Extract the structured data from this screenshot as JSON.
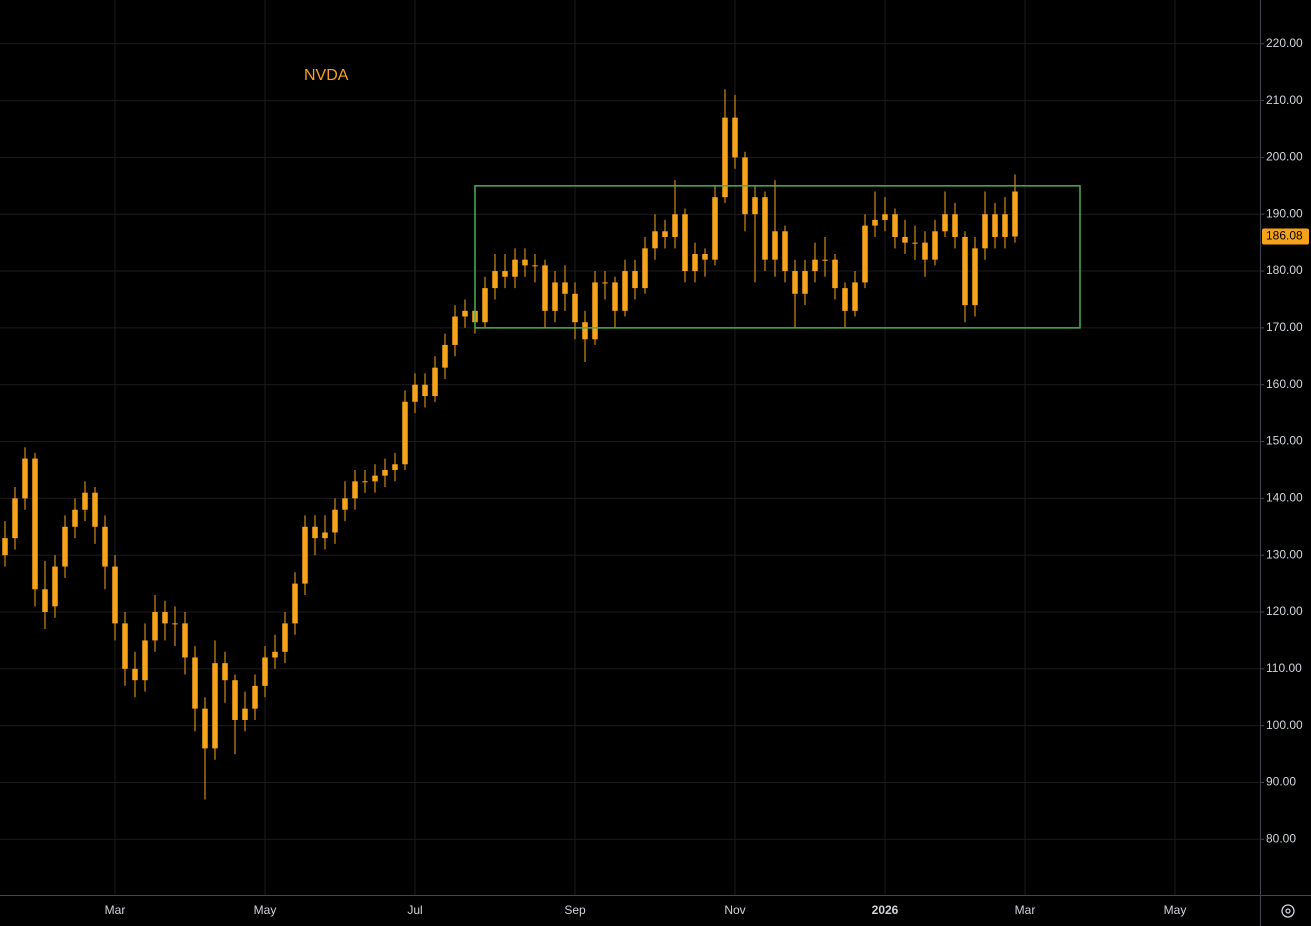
{
  "chart_data": {
    "type": "candlestick",
    "title": "NVDA",
    "color": "#f7a21b",
    "grid": true,
    "categories": [
      null,
      null,
      null,
      null,
      null,
      null,
      null,
      null,
      null,
      null,
      null,
      "Mar",
      null,
      null,
      null,
      null,
      null,
      null,
      null,
      null,
      null,
      null,
      null,
      null,
      null,
      null,
      "May",
      null,
      null,
      null,
      null,
      null,
      null,
      null,
      null,
      null,
      null,
      null,
      null,
      null,
      null,
      "Jul",
      null,
      null,
      null,
      null,
      null,
      null,
      null,
      null,
      null,
      null,
      null,
      null,
      null,
      null,
      null,
      "Sep",
      null,
      null,
      null,
      null,
      null,
      null,
      null,
      null,
      null,
      null,
      null,
      null,
      null,
      null,
      null,
      "Nov",
      null,
      null,
      null,
      null,
      null,
      null,
      null,
      null,
      null,
      null,
      null,
      null,
      null,
      null,
      "2026",
      null,
      null,
      null,
      null,
      null,
      null,
      null,
      null,
      null,
      null,
      null,
      null,
      null,
      "Mar",
      null,
      null,
      null,
      null,
      null,
      null,
      null,
      null,
      null,
      null,
      null,
      null,
      null,
      null,
      "May",
      null,
      null,
      null,
      null,
      null,
      null,
      null,
      null
    ],
    "open": [
      130,
      133,
      140,
      147,
      124,
      121,
      128,
      135,
      138,
      141,
      135,
      128,
      118,
      110,
      108,
      115,
      120,
      118,
      118,
      112,
      103,
      96,
      111,
      108,
      101,
      103,
      107,
      112,
      113,
      118,
      125,
      135,
      133,
      134,
      138,
      140,
      143,
      143,
      144,
      145,
      146,
      157,
      160,
      158,
      163,
      167,
      172,
      173,
      171,
      177,
      180,
      179,
      182,
      181,
      181,
      173,
      178,
      176,
      171,
      168,
      178,
      178,
      173,
      180,
      177,
      184,
      187,
      186,
      190,
      180,
      183,
      182,
      193,
      207,
      200,
      190,
      193,
      182,
      187,
      180,
      176,
      180,
      182,
      182,
      177,
      173,
      178,
      188,
      189,
      190,
      186,
      185,
      185,
      182,
      187,
      190,
      186,
      174,
      184,
      190,
      186,
      194,
      null,
      null,
      null,
      null,
      null,
      null,
      null,
      null,
      null,
      null,
      null,
      null,
      null,
      null,
      null,
      null,
      null,
      null,
      null,
      null,
      null,
      null,
      null,
      null
    ],
    "high": [
      136,
      142,
      149,
      148,
      129,
      130,
      137,
      140,
      143,
      142,
      137,
      130,
      120,
      113,
      118,
      123,
      122,
      121,
      120,
      114,
      105,
      115,
      113,
      109,
      106,
      109,
      114,
      116,
      120,
      127,
      137,
      137,
      137,
      140,
      143,
      145,
      145,
      146,
      147,
      148,
      159,
      162,
      162,
      165,
      169,
      174,
      175,
      175,
      179,
      183,
      183,
      184,
      184,
      183,
      182,
      180,
      181,
      178,
      173,
      180,
      180,
      179,
      182,
      182,
      186,
      190,
      189,
      196,
      191,
      185,
      184,
      195,
      212,
      211,
      201,
      195,
      194,
      196,
      188,
      182,
      182,
      185,
      186,
      183,
      178,
      180,
      190,
      194,
      193,
      191,
      189,
      188,
      187,
      189,
      194,
      192,
      187,
      186,
      194,
      192,
      193,
      197,
      null,
      null,
      null,
      null,
      null,
      null,
      null,
      null,
      null,
      null,
      null,
      null,
      null,
      null,
      null,
      null,
      null,
      null,
      null,
      null,
      null,
      null,
      null,
      null
    ],
    "low": [
      128,
      131,
      138,
      121,
      117,
      119,
      126,
      133,
      136,
      132,
      124,
      115,
      107,
      105,
      106,
      113,
      115,
      114,
      109,
      99,
      87,
      94,
      104,
      95,
      99,
      101,
      105,
      110,
      111,
      116,
      123,
      130,
      131,
      132,
      136,
      138,
      141,
      141,
      142,
      143,
      145,
      155,
      156,
      157,
      161,
      165,
      170,
      169,
      170,
      175,
      177,
      177,
      179,
      178,
      170,
      171,
      173,
      168,
      164,
      167,
      175,
      170,
      172,
      175,
      176,
      182,
      184,
      184,
      178,
      178,
      179,
      181,
      192,
      198,
      187,
      178,
      180,
      179,
      178,
      170,
      174,
      178,
      179,
      175,
      170,
      172,
      177,
      186,
      187,
      184,
      183,
      182,
      179,
      181,
      186,
      184,
      171,
      172,
      182,
      184,
      184,
      185,
      null,
      null,
      null,
      null,
      null,
      null,
      null,
      null,
      null,
      null,
      null,
      null,
      null,
      null,
      null,
      null,
      null,
      null,
      null,
      null,
      null,
      null,
      null,
      null
    ],
    "close": [
      133,
      140,
      147,
      124,
      120,
      128,
      135,
      138,
      141,
      135,
      128,
      118,
      110,
      108,
      115,
      120,
      118,
      118,
      112,
      103,
      96,
      111,
      108,
      101,
      103,
      107,
      112,
      113,
      118,
      125,
      135,
      133,
      134,
      138,
      140,
      143,
      143,
      144,
      145,
      146,
      157,
      160,
      158,
      163,
      167,
      172,
      173,
      171,
      177,
      180,
      179,
      182,
      181,
      181,
      173,
      178,
      176,
      171,
      168,
      178,
      178,
      173,
      180,
      177,
      184,
      187,
      186,
      190,
      180,
      183,
      182,
      193,
      207,
      200,
      190,
      193,
      182,
      187,
      180,
      176,
      180,
      182,
      182,
      177,
      173,
      178,
      188,
      189,
      190,
      186,
      185,
      185,
      182,
      187,
      190,
      186,
      174,
      184,
      190,
      186,
      190,
      186.08,
      null,
      null,
      null,
      null,
      null,
      null,
      null,
      null,
      null,
      null,
      null,
      null,
      null,
      null,
      null,
      null,
      null,
      null,
      null,
      null,
      null,
      null,
      null,
      null
    ],
    "ylim": [
      70.2,
      227.7
    ],
    "yticks": [
      {
        "value": 80,
        "label": "80.00"
      },
      {
        "value": 90,
        "label": "90.00"
      },
      {
        "value": 100,
        "label": "100.00"
      },
      {
        "value": 110,
        "label": "110.00"
      },
      {
        "value": 120,
        "label": "120.00"
      },
      {
        "value": 130,
        "label": "130.00"
      },
      {
        "value": 140,
        "label": "140.00"
      },
      {
        "value": 150,
        "label": "150.00"
      },
      {
        "value": 160,
        "label": "160.00"
      },
      {
        "value": 170,
        "label": "170.00"
      },
      {
        "value": 180,
        "label": "180.00"
      },
      {
        "value": 190,
        "label": "190.00"
      },
      {
        "value": 200,
        "label": "200.00"
      },
      {
        "value": 210,
        "label": "210.00"
      },
      {
        "value": 220,
        "label": "220.00"
      }
    ],
    "range_box": {
      "top": 195,
      "bottom": 170,
      "color": "#4caf50"
    }
  }
}
